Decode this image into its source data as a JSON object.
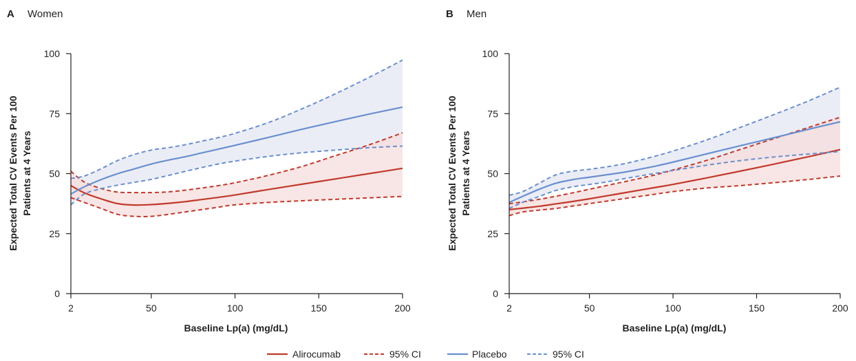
{
  "chart_data": [
    {
      "type": "line",
      "panel_letter": "A",
      "title": "Women",
      "xlabel": "Baseline Lp(a) (mg/dL)",
      "ylabel": [
        "Expected Total CV Events Per 100",
        "Patients at 4 Years"
      ],
      "xlim": [
        2,
        200
      ],
      "ylim": [
        0,
        100
      ],
      "x_ticks": [
        2,
        50,
        100,
        150,
        200
      ],
      "y_ticks": [
        0,
        25,
        50,
        75,
        100
      ],
      "series": [
        {
          "name": "Alirocumab",
          "color": "#c0392b",
          "x": [
            2,
            10,
            20,
            30,
            40,
            50,
            60,
            70,
            80,
            90,
            100,
            120,
            140,
            160,
            180,
            200
          ],
          "values": [
            45,
            42,
            39.5,
            37.5,
            36.9,
            37.1,
            37.6,
            38.3,
            39.2,
            40.1,
            41.1,
            43.4,
            45.6,
            47.8,
            50,
            52.2
          ],
          "lower": [
            40,
            38,
            35.5,
            33,
            32.2,
            32.2,
            33,
            34,
            35,
            36,
            37,
            38,
            38.7,
            39.3,
            39.9,
            40.5
          ],
          "upper": [
            51,
            46.5,
            43.8,
            42.3,
            42.1,
            42.1,
            42.4,
            43.1,
            44,
            45,
            46.2,
            49.3,
            53,
            57.5,
            62,
            67
          ]
        },
        {
          "name": "Placebo",
          "color": "#6a8fcf",
          "x": [
            2,
            10,
            20,
            30,
            40,
            50,
            60,
            70,
            80,
            90,
            100,
            120,
            140,
            160,
            180,
            200
          ],
          "values": [
            41.5,
            44.5,
            47.5,
            50,
            52,
            54,
            55.6,
            57,
            58.6,
            60.2,
            61.8,
            65.1,
            68.5,
            71.7,
            74.8,
            77.7
          ],
          "lower": [
            37,
            41.5,
            43.7,
            45.2,
            46.4,
            47.6,
            49.2,
            50.9,
            52.5,
            54,
            55.2,
            57.2,
            58.7,
            59.8,
            60.8,
            61.5
          ],
          "upper": [
            48,
            49,
            52,
            55.5,
            58,
            59.8,
            60.8,
            62,
            63.5,
            65,
            66.8,
            71.3,
            77,
            83.3,
            90.1,
            97.3
          ]
        }
      ],
      "legend": [
        "Alirocumab",
        "95% CI",
        "Placebo",
        "95% CI"
      ]
    },
    {
      "type": "line",
      "panel_letter": "B",
      "title": "Men",
      "xlabel": "Baseline Lp(a) (mg/dL)",
      "ylabel": [
        "Expected Total CV Events Per 100",
        "Patients at 4 Years"
      ],
      "xlim": [
        2,
        200
      ],
      "ylim": [
        0,
        100
      ],
      "x_ticks": [
        2,
        50,
        100,
        150,
        200
      ],
      "y_ticks": [
        0,
        25,
        50,
        75,
        100
      ],
      "series": [
        {
          "name": "Alirocumab",
          "color": "#c0392b",
          "x": [
            2,
            10,
            20,
            30,
            40,
            50,
            60,
            70,
            80,
            90,
            100,
            120,
            140,
            160,
            180,
            200
          ],
          "values": [
            35,
            35.6,
            36.4,
            37.4,
            38.4,
            39.5,
            40.7,
            41.9,
            43.1,
            44.3,
            45.5,
            48.2,
            51,
            53.9,
            56.9,
            60
          ],
          "lower": [
            32.5,
            34,
            34.8,
            35.5,
            36.5,
            37.5,
            38.5,
            39.5,
            40.5,
            41.5,
            42.5,
            44,
            45,
            46.2,
            47.5,
            49
          ],
          "upper": [
            37.5,
            38.2,
            39.3,
            40.6,
            42,
            43.5,
            45,
            46.5,
            48,
            49.6,
            51.5,
            55.5,
            60,
            64.5,
            69,
            73.5
          ]
        },
        {
          "name": "Placebo",
          "color": "#6a8fcf",
          "x": [
            2,
            10,
            20,
            30,
            40,
            50,
            60,
            70,
            80,
            90,
            100,
            120,
            140,
            160,
            180,
            200
          ],
          "values": [
            38,
            40.5,
            43.5,
            46,
            47.5,
            48.5,
            49.5,
            50.5,
            51.8,
            53.2,
            54.8,
            58.2,
            61.6,
            64.9,
            68.3,
            71.6
          ],
          "lower": [
            35.5,
            38,
            40.5,
            43,
            44.5,
            45.5,
            46.5,
            47.8,
            49,
            50.2,
            51.3,
            53.5,
            55.4,
            56.9,
            58.1,
            59.2
          ],
          "upper": [
            41,
            42.5,
            46,
            49.5,
            51,
            51.8,
            52.8,
            54,
            55.6,
            57.4,
            59.4,
            64,
            69.2,
            74.5,
            80,
            86
          ]
        }
      ],
      "legend": [
        "Alirocumab",
        "95% CI",
        "Placebo",
        "95% CI"
      ]
    }
  ],
  "legend": {
    "items": [
      {
        "label": "Alirocumab",
        "color": "#c0392b",
        "style": "solid"
      },
      {
        "label": "95% CI",
        "color": "#c0392b",
        "style": "dashed"
      },
      {
        "label": "Placebo",
        "color": "#6a8fcf",
        "style": "solid"
      },
      {
        "label": "95% CI",
        "color": "#6a8fcf",
        "style": "dashed"
      }
    ]
  },
  "colors": {
    "alirocumab": "#c0392b",
    "alirocumab_band": "#f6dcdc",
    "placebo": "#6a8fcf",
    "placebo_band": "#e4e7f3",
    "axis": "#231f20"
  }
}
